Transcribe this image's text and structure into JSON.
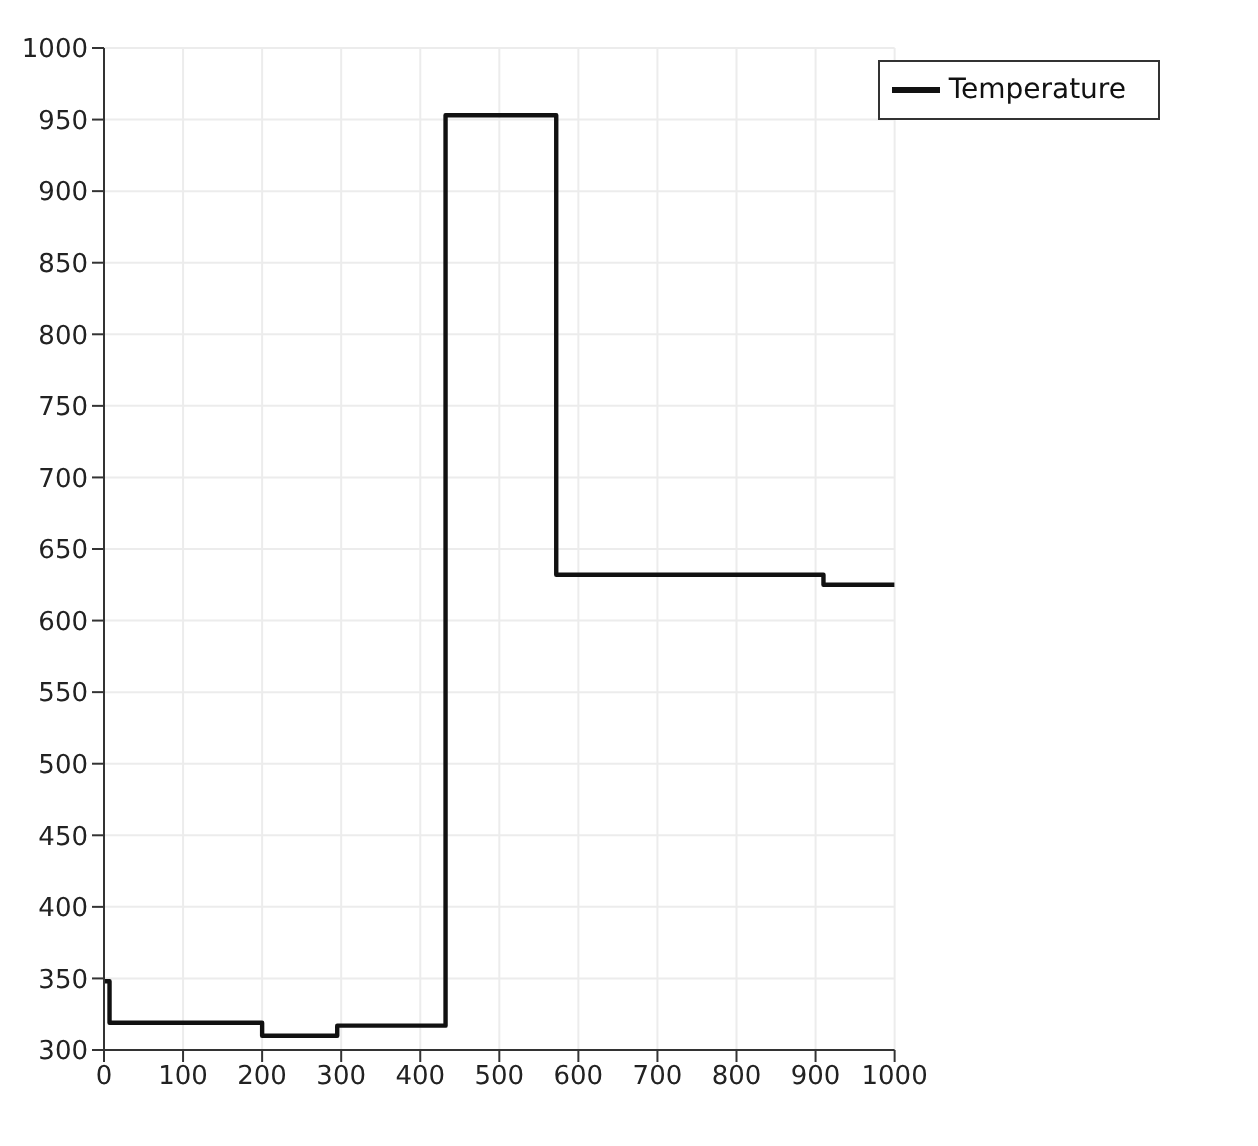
{
  "chart_data": {
    "type": "step",
    "x": [
      0,
      7,
      200,
      295,
      432,
      572,
      910,
      1000
    ],
    "series": [
      {
        "name": "Temperature",
        "color": "#111111",
        "values": [
          348,
          319,
          310,
          317,
          953,
          632,
          625,
          625
        ]
      }
    ],
    "xlim": [
      0,
      1000
    ],
    "xticks": [
      0,
      100,
      200,
      300,
      400,
      500,
      600,
      700,
      800,
      900,
      1000
    ],
    "ylim": [
      300,
      1000
    ],
    "yticks": [
      300,
      350,
      400,
      450,
      500,
      550,
      600,
      650,
      700,
      750,
      800,
      850,
      900,
      950,
      1000
    ],
    "grid": true,
    "legend": "top right",
    "marker": "none",
    "line_style": "solid"
  }
}
